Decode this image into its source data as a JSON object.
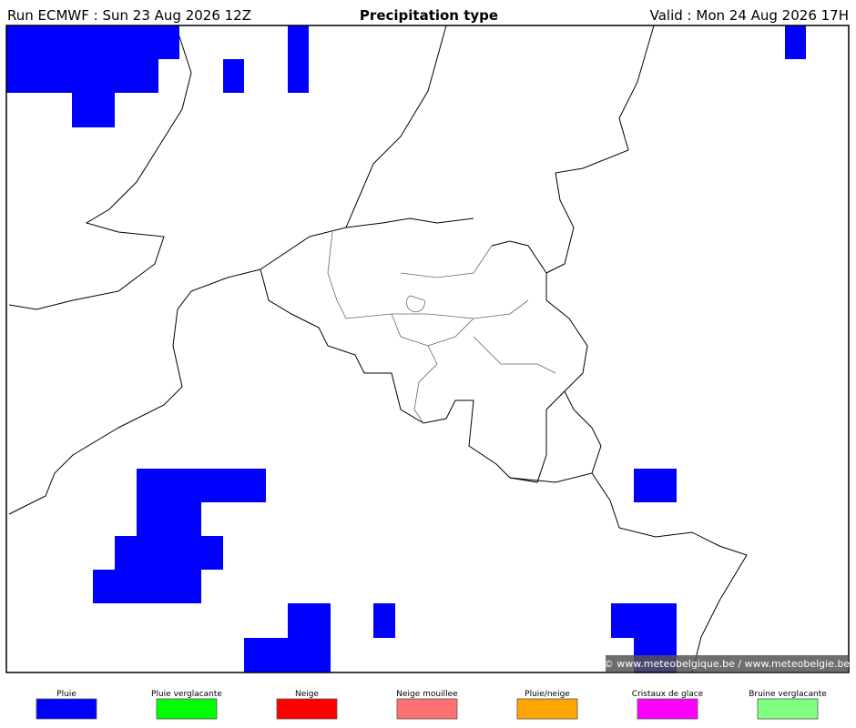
{
  "header": {
    "run": "Run ECMWF : Sun 23 Aug 2026 12Z",
    "title": "Precipitation type",
    "valid": "Valid : Mon 24 Aug 2026 17H"
  },
  "watermark": "© www.meteobelgique.be / www.meteobelgie.be",
  "legend": [
    {
      "label": "Pluie",
      "color": "#0000ff"
    },
    {
      "label": "Pluie verglacante",
      "color": "#00ff00"
    },
    {
      "label": "Neige",
      "color": "#ff0000"
    },
    {
      "label": "Neige mouillee",
      "color": "#ff7070"
    },
    {
      "label": "Pluie/neige",
      "color": "#ffa500"
    },
    {
      "label": "Cristaux de glace",
      "color": "#ff00ff"
    },
    {
      "label": "Bruine verglacante",
      "color": "#80ff80"
    }
  ]
}
